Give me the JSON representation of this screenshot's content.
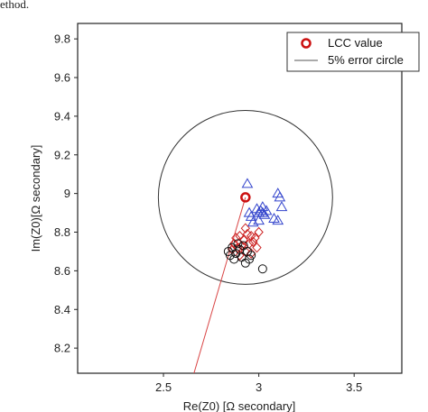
{
  "caption_fragment": "ethod.",
  "chart_data": {
    "type": "scatter",
    "title": "",
    "xlabel": "Re(Z0) [Ω secondary]",
    "ylabel": "Im(Z0)[Ω secondary]",
    "xlim": [
      2.05,
      3.75
    ],
    "ylim": [
      8.07,
      9.88
    ],
    "xticks": [
      2.5,
      3.0,
      3.5
    ],
    "xtick_labels": [
      "2.5",
      "3",
      "3.5"
    ],
    "yticks": [
      8.2,
      8.4,
      8.6,
      8.8,
      9.0,
      9.2,
      9.4,
      9.6,
      9.8
    ],
    "ytick_labels": [
      "8.2",
      "8.4",
      "8.6",
      "8.8",
      "9",
      "9.2",
      "9.4",
      "9.6",
      "9.8"
    ],
    "grid": false,
    "legend": {
      "placement": "top-right",
      "entries": [
        {
          "label": "LCC value",
          "marker": "circle",
          "color": "#cc1111"
        },
        {
          "label": "5% error circle",
          "marker": "line",
          "color": "#555555"
        }
      ]
    },
    "lcc_value": {
      "x": 2.93,
      "y": 8.98,
      "color": "#cc1111"
    },
    "error_circle": {
      "center_x": 2.93,
      "center_y": 8.98,
      "radius_y": 0.45,
      "color": "#333333"
    },
    "red_line": {
      "x": [
        2.93,
        2.66
      ],
      "y": [
        8.98,
        8.07
      ],
      "color": "#d94444"
    },
    "series": [
      {
        "marker": "triangle",
        "color": "#3344cc",
        "x": [
          2.94,
          2.96,
          2.99,
          3.0,
          3.01,
          3.02,
          3.03,
          3.04,
          2.97,
          3.0,
          3.1,
          3.11,
          3.08,
          3.1,
          3.12,
          2.95,
          3.02
        ],
        "y": [
          9.05,
          8.88,
          8.92,
          8.9,
          8.91,
          8.9,
          8.89,
          8.91,
          8.85,
          8.86,
          9.0,
          8.98,
          8.87,
          8.86,
          8.93,
          8.9,
          8.93
        ]
      },
      {
        "marker": "diamond",
        "color": "#cc2222",
        "x": [
          2.88,
          2.9,
          2.92,
          2.94,
          2.96,
          2.98,
          3.0,
          2.91,
          2.95,
          2.89,
          2.93,
          2.97,
          2.99,
          2.87,
          2.93,
          2.96,
          2.9,
          2.86
        ],
        "y": [
          8.77,
          8.78,
          8.76,
          8.79,
          8.78,
          8.77,
          8.8,
          8.73,
          8.74,
          8.72,
          8.7,
          8.75,
          8.72,
          8.74,
          8.82,
          8.69,
          8.68,
          8.71
        ]
      },
      {
        "marker": "circle",
        "color": "#111111",
        "x": [
          2.84,
          2.86,
          2.88,
          2.9,
          2.92,
          2.94,
          2.96,
          2.87,
          2.91,
          2.95,
          2.89,
          2.93,
          3.02,
          2.85
        ],
        "y": [
          8.7,
          8.72,
          8.69,
          8.71,
          8.73,
          8.7,
          8.68,
          8.66,
          8.67,
          8.66,
          8.74,
          8.64,
          8.61,
          8.68
        ]
      }
    ]
  }
}
